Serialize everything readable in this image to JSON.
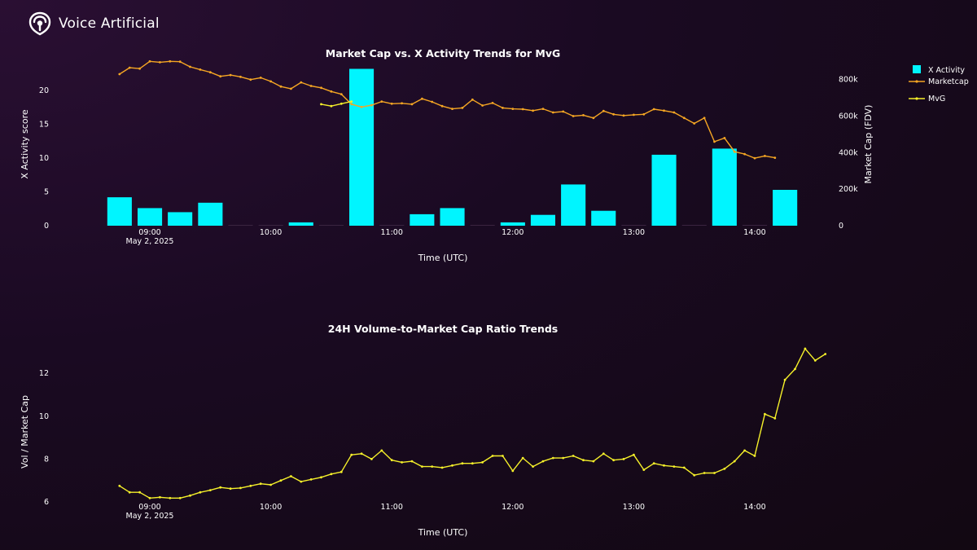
{
  "brand": {
    "name": "Voice Artificial",
    "icon": "voice-artificial-logo-icon"
  },
  "colors": {
    "bar": "#00f5ff",
    "marketcap": "#f5a623",
    "mvg": "#f5f02a",
    "zero_bar": "#3a2440"
  },
  "chart_data": [
    {
      "type": "bar+line",
      "title": "Market Cap vs. X Activity Trends for MvG",
      "xlabel": "Time (UTC)",
      "ylabel": "X Activity score",
      "y2label": "Market Cap (FDV)",
      "x_ticks": [
        "09:00",
        "10:00",
        "11:00",
        "12:00",
        "13:00",
        "14:00"
      ],
      "x_date_label": "May 2, 2025",
      "ylim": [
        0,
        23.5
      ],
      "y_ticks": [
        "0",
        "5",
        "10",
        "15",
        "20"
      ],
      "y2lim": [
        0,
        870000
      ],
      "y2_ticks": [
        "0",
        "200k",
        "400k",
        "600k",
        "800k"
      ],
      "legend": {
        "position": "top-right",
        "entries": [
          "X Activity",
          "Marketcap",
          "MvG"
        ]
      },
      "bars": {
        "name": "X Activity",
        "times": [
          "08:45",
          "09:00",
          "09:15",
          "09:30",
          "09:45",
          "10:00",
          "10:15",
          "10:30",
          "10:45",
          "11:00",
          "11:15",
          "11:30",
          "11:45",
          "12:00",
          "12:15",
          "12:30",
          "12:45",
          "13:00",
          "13:15",
          "13:30",
          "13:45",
          "14:00",
          "14:15"
        ],
        "values": [
          4.2,
          2.6,
          2.0,
          3.4,
          0,
          0,
          0.5,
          0,
          23.2,
          0,
          1.7,
          2.6,
          0,
          0.5,
          1.6,
          6.1,
          2.2,
          0,
          10.5,
          0,
          11.4,
          0,
          5.3
        ]
      },
      "series": [
        {
          "name": "Marketcap",
          "x_start": "08:45",
          "x_step_minutes": 5,
          "values": [
            830000,
            865000,
            860000,
            900000,
            895000,
            900000,
            898000,
            870000,
            855000,
            840000,
            818000,
            825000,
            815000,
            800000,
            810000,
            790000,
            762000,
            750000,
            785000,
            765000,
            755000,
            735000,
            720000,
            665000,
            650000,
            660000,
            680000,
            668000,
            670000,
            665000,
            695000,
            678000,
            655000,
            640000,
            645000,
            690000,
            658000,
            672000,
            645000,
            640000,
            638000,
            630000,
            640000,
            620000,
            625000,
            600000,
            605000,
            590000,
            628000,
            610000,
            603000,
            607000,
            610000,
            638000,
            630000,
            620000,
            590000,
            560000,
            590000,
            460000,
            480000,
            405000,
            392000,
            370000,
            382000,
            372000
          ]
        },
        {
          "name": "MvG",
          "x_start": "10:25",
          "x_step_minutes": 5,
          "values": [
            665000,
            655000,
            668000,
            680000
          ]
        }
      ]
    },
    {
      "type": "line",
      "title": "24H Volume-to-Market Cap Ratio Trends",
      "xlabel": "Time (UTC)",
      "ylabel": "Vol / Market Cap",
      "x_ticks": [
        "09:00",
        "10:00",
        "11:00",
        "12:00",
        "13:00",
        "14:00"
      ],
      "x_date_label": "May 2, 2025",
      "ylim": [
        5.85,
        13.45
      ],
      "y_ticks": [
        "6",
        "8",
        "10",
        "12"
      ],
      "series": [
        {
          "name": "",
          "x_start": "08:45",
          "x_step_minutes": 5,
          "values": [
            6.75,
            6.45,
            6.45,
            6.18,
            6.22,
            6.18,
            6.18,
            6.3,
            6.45,
            6.55,
            6.68,
            6.62,
            6.65,
            6.75,
            6.85,
            6.8,
            7.0,
            7.2,
            6.95,
            7.05,
            7.15,
            7.3,
            7.4,
            8.2,
            8.25,
            8.0,
            8.4,
            7.95,
            7.85,
            7.9,
            7.65,
            7.65,
            7.6,
            7.7,
            7.8,
            7.8,
            7.85,
            8.15,
            8.15,
            7.45,
            8.05,
            7.65,
            7.9,
            8.05,
            8.05,
            8.15,
            7.95,
            7.9,
            8.25,
            7.95,
            8.0,
            8.2,
            7.5,
            7.8,
            7.7,
            7.65,
            7.6,
            7.25,
            7.35,
            7.35,
            7.55,
            7.9,
            8.4,
            8.15,
            10.1,
            9.9,
            11.7,
            12.2,
            13.15,
            12.6,
            12.9
          ]
        }
      ]
    }
  ]
}
